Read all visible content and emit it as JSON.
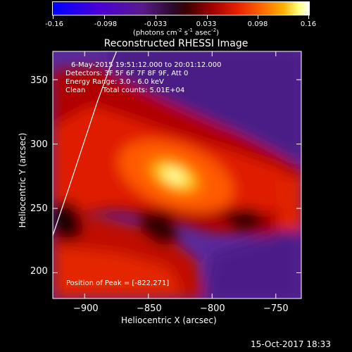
{
  "colorbar": {
    "ticks": [
      "-0.16",
      "-0.098",
      "-0.033",
      "0.033",
      "0.098",
      "0.16"
    ],
    "unit_label": "(photons cm",
    "unit_exp1": "-2",
    "unit_mid": " s",
    "unit_exp2": "-1",
    "unit_tail": " asec",
    "unit_exp3": "-2",
    "unit_close": ")",
    "min": -0.16,
    "max": 0.16
  },
  "chart_data": {
    "type": "heatmap",
    "title": "Reconstructed RHESSI Image",
    "xlabel": "Heliocentric X (arcsec)",
    "ylabel": "Heliocentric Y (arcsec)",
    "xlim": [
      -925,
      -730
    ],
    "ylim": [
      180,
      372
    ],
    "x_ticks": [
      "−900",
      "−850",
      "−800",
      "−750"
    ],
    "x_tick_values": [
      -900,
      -850,
      -800,
      -750
    ],
    "y_ticks": [
      "200",
      "250",
      "300",
      "350"
    ],
    "y_tick_values": [
      200,
      250,
      300,
      350
    ],
    "peak": {
      "x": -822,
      "y": 271
    },
    "colormap": "purple-red-yellow-white",
    "limb_curve": [
      [
        -925,
        229
      ],
      [
        -912,
        267
      ],
      [
        -900,
        303
      ],
      [
        -890,
        333
      ],
      [
        -880,
        360
      ],
      [
        -875,
        372
      ]
    ]
  },
  "info": {
    "line1": "6-May-2015 19:51:12.000 to 20:01:12.000",
    "line2": "Detectors: 3F 5F 6F 7F 8F 9F, Att 0",
    "line3": "Energy Range: 3.0 - 6.0 keV",
    "line4a": "Clean",
    "line4b": "Total counts: 5.01E+04",
    "peak_text": "Position of Peak = [-822,271]"
  },
  "footer_date": "15-Oct-2017 18:33"
}
